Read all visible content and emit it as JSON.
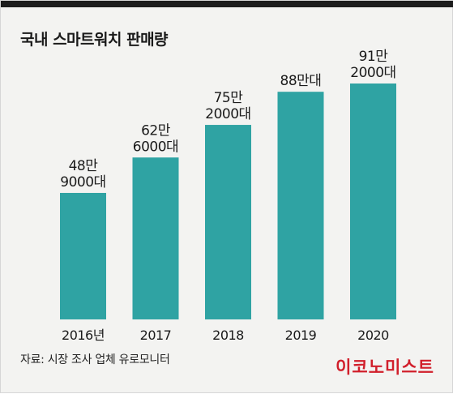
{
  "title": "국내 스마트워치 판매량",
  "source": "자료: 시장 조사 업체 유로모니터",
  "brand": "이코노미스트",
  "colors": {
    "bar": "#2fa3a3",
    "text": "#1a1a1a",
    "brand": "#d11f2b",
    "background": "#f3f3f1"
  },
  "chart_data": {
    "type": "bar",
    "title": "국내 스마트워치 판매량",
    "categories": [
      "2016년",
      "2017",
      "2018",
      "2019",
      "2020"
    ],
    "values": [
      489000,
      626000,
      752000,
      880000,
      912000
    ],
    "data_labels": [
      [
        "48만",
        "9000대"
      ],
      [
        "62만",
        "6000대"
      ],
      [
        "75만",
        "2000대"
      ],
      [
        "88만대"
      ],
      [
        "91만",
        "2000대"
      ]
    ],
    "xlabel": "",
    "ylabel": "",
    "ylim": [
      0,
      912000
    ],
    "grid": false,
    "legend": "none"
  }
}
